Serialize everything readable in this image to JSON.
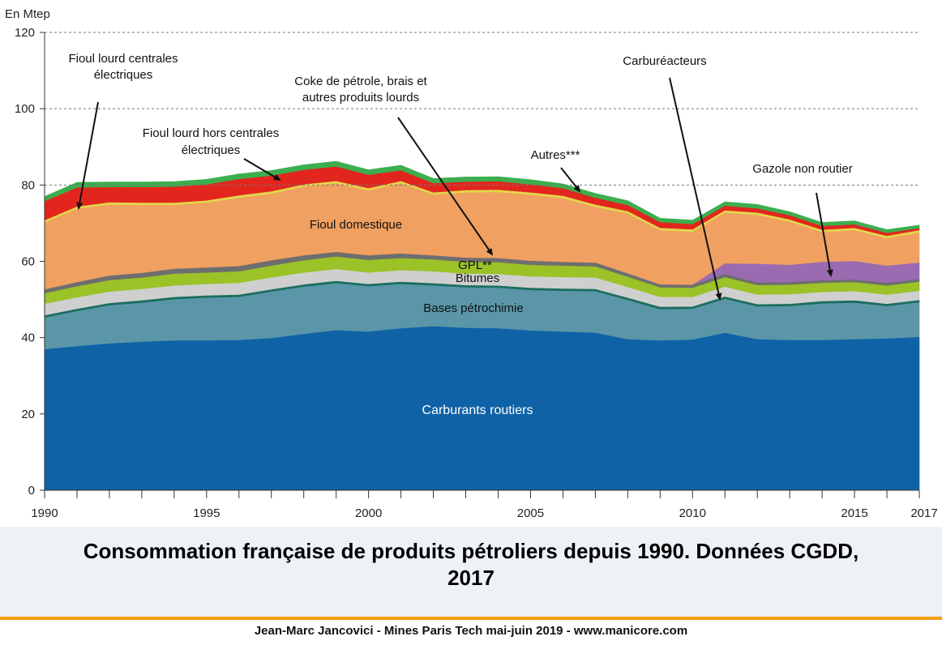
{
  "chart_data": {
    "type": "area",
    "stacked": true,
    "unit_label": "En Mtep",
    "x": [
      1990,
      1991,
      1992,
      1993,
      1994,
      1995,
      1996,
      1997,
      1998,
      1999,
      2000,
      2001,
      2002,
      2003,
      2004,
      2005,
      2006,
      2007,
      2008,
      2009,
      2010,
      2011,
      2012,
      2013,
      2014,
      2015,
      2016,
      2017
    ],
    "x_tick_labels": [
      "1990",
      "1995",
      "2000",
      "2005",
      "2010",
      "2015",
      "2017"
    ],
    "x_tick_values": [
      1990,
      1995,
      2000,
      2005,
      2010,
      2015,
      2017
    ],
    "ylim": [
      0,
      120
    ],
    "y_ticks": [
      0,
      20,
      40,
      60,
      80,
      100,
      120
    ],
    "grid": "dashed horizontal at 80, 100, 120",
    "series": [
      {
        "name": "Carburants routiers",
        "color": "#0f62a6",
        "values": [
          37,
          37.8,
          38.5,
          39,
          39.3,
          39.3,
          39.4,
          39.9,
          41,
          42,
          41.6,
          42.5,
          43,
          42.6,
          42.5,
          41.9,
          41.6,
          41.3,
          39.6,
          39.3,
          39.5,
          41.3,
          39.6,
          39.4,
          39.4,
          39.6,
          39.8,
          40.2
        ]
      },
      {
        "name": "Bases pétrochimie",
        "color": "#5a96a8",
        "values": [
          8.3,
          9.2,
          10,
          10.2,
          10.8,
          11.2,
          11.3,
          12.2,
          12.4,
          12.3,
          11.9,
          11.6,
          10.7,
          10.6,
          10.6,
          10.6,
          10.7,
          10.9,
          10.3,
          8.2,
          8.1,
          8.9,
          8.6,
          8.9,
          9.6,
          9.6,
          8.5,
          9.1
        ]
      },
      {
        "name": "Carburéacteurs",
        "color": "#1b6e5e",
        "values": [
          0.6,
          0.6,
          0.6,
          0.6,
          0.6,
          0.6,
          0.6,
          0.6,
          0.6,
          0.6,
          0.6,
          0.6,
          0.6,
          0.6,
          0.6,
          0.6,
          0.6,
          0.6,
          0.6,
          0.6,
          0.6,
          0.6,
          0.6,
          0.6,
          0.6,
          0.6,
          0.6,
          0.6
        ]
      },
      {
        "name": "Bitumes",
        "color": "#cfcfcf",
        "values": [
          3,
          3,
          3,
          3,
          3,
          3,
          3.1,
          3.1,
          3.1,
          3.1,
          3,
          3,
          3.1,
          3,
          3,
          3,
          3,
          3,
          2.8,
          2.6,
          2.5,
          2.6,
          2.5,
          2.5,
          2.4,
          2.4,
          2.4,
          2.4
        ]
      },
      {
        "name": "GPL**",
        "color": "#9bc227",
        "values": [
          2.8,
          2.9,
          3,
          3,
          3.1,
          3,
          3,
          3.1,
          3.2,
          3.3,
          3.3,
          3.2,
          3.1,
          3.1,
          3.1,
          3,
          3,
          2.9,
          2.7,
          2.5,
          2.4,
          2.5,
          2.5,
          2.5,
          2.4,
          2.4,
          2.4,
          2.4
        ]
      },
      {
        "name": "Coke de pétrole, brais et autres produits lourds",
        "color": "#6e6e6e",
        "values": [
          1,
          1.1,
          1.2,
          1.2,
          1.3,
          1.3,
          1.4,
          1.4,
          1.3,
          1.2,
          1.2,
          1.2,
          1.1,
          1.1,
          1.1,
          1.1,
          1,
          1,
          0.9,
          0.8,
          0.8,
          0.8,
          0.7,
          0.7,
          0.7,
          0.7,
          0.7,
          0.7
        ]
      },
      {
        "name": "Gazole non routier",
        "color": "#9b6bb2",
        "values": [
          0,
          0,
          0,
          0,
          0,
          0,
          0,
          0,
          0,
          0,
          0,
          0,
          0,
          0,
          0,
          0,
          0,
          0,
          0,
          0,
          0,
          2.8,
          4.9,
          4.5,
          4.8,
          4.8,
          4.5,
          4.3
        ]
      },
      {
        "name": "Fioul domestique",
        "color": "#f0a060",
        "values": [
          17.5,
          19.2,
          18.6,
          17.8,
          16.7,
          17,
          17.9,
          17.5,
          18,
          18,
          17,
          18.4,
          15.9,
          17.1,
          17.3,
          17.3,
          16.7,
          14.6,
          15.7,
          14.2,
          13.9,
          13.3,
          12.8,
          11.3,
          7.8,
          8.1,
          7.2,
          7.9
        ]
      },
      {
        "name": "Fioul lourd hors centrales électriques",
        "color": "#e3d64b",
        "values": [
          0.6,
          0.6,
          0.6,
          0.6,
          0.6,
          0.6,
          0.6,
          0.6,
          0.6,
          0.6,
          0.6,
          0.6,
          0.6,
          0.6,
          0.6,
          0.6,
          0.6,
          0.6,
          0.6,
          0.6,
          0.6,
          0.6,
          0.6,
          0.6,
          0.6,
          0.6,
          0.6,
          0.6
        ]
      },
      {
        "name": "Fioul lourd centrales électriques",
        "color": "#e2261e",
        "values": [
          5,
          5,
          4,
          4.1,
          4.2,
          4.2,
          4.3,
          4.1,
          3.8,
          3.8,
          3.5,
          2.8,
          2.4,
          2.2,
          2.2,
          2.1,
          2,
          1.8,
          1.6,
          1.5,
          1.4,
          1.2,
          1.1,
          1.1,
          1,
          0.9,
          0.8,
          0.5
        ]
      },
      {
        "name": "Autres***",
        "color": "#3cae4e",
        "values": [
          1.2,
          1.3,
          1.3,
          1.3,
          1.3,
          1.3,
          1.3,
          1.3,
          1.3,
          1.3,
          1.3,
          1.3,
          1.2,
          1.2,
          1.2,
          1.2,
          1.1,
          1.1,
          1.1,
          1,
          1,
          1,
          1,
          0.9,
          0.9,
          0.9,
          0.8,
          0.8
        ]
      }
    ],
    "annotations": [
      {
        "text": "Fioul lourd centrales",
        "text2": "électriques"
      },
      {
        "text": "Fioul lourd hors centrales",
        "text2": "électriques"
      },
      {
        "text": "Coke de pétrole, brais et",
        "text2": "autres produits lourds"
      },
      {
        "text": "Autres***"
      },
      {
        "text": "Carburéacteurs"
      },
      {
        "text": "Gazole non routier"
      },
      {
        "text": "Fioul domestique"
      },
      {
        "text": "GPL**"
      },
      {
        "text": "Bitumes"
      },
      {
        "text": "Bases pétrochimie"
      },
      {
        "text": "Carburants routiers"
      }
    ]
  },
  "caption": {
    "line1": "Consommation française de produits pétroliers depuis 1990. Données CGDD,",
    "line2": "2017"
  },
  "footer": "Jean-Marc Jancovici - Mines Paris Tech mai-juin 2019 - www.manicore.com"
}
